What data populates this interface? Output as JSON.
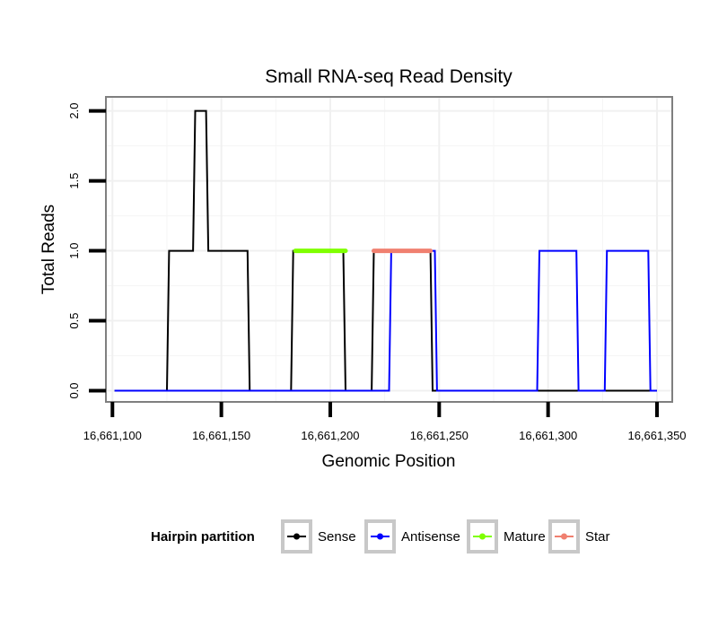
{
  "chart_data": {
    "type": "line",
    "title": "Small RNA-seq Read Density",
    "xlabel": "Genomic Position",
    "ylabel": "Total Reads",
    "xlim": [
      16661097,
      16661357
    ],
    "ylim": [
      -0.08,
      2.1
    ],
    "x_ticks": [
      16661100,
      16661150,
      16661200,
      16661250,
      16661300,
      16661350
    ],
    "x_tick_labels": [
      "16,661,100",
      "16,661,150",
      "16,661,200",
      "16,661,250",
      "16,661,300",
      "16,661,350"
    ],
    "y_ticks": [
      0.0,
      0.5,
      1.0,
      1.5,
      2.0
    ],
    "y_tick_labels": [
      "0.0",
      "0.5",
      "1.0",
      "1.5",
      "2.0"
    ],
    "grid": true,
    "legend": {
      "title": "Hairpin partition",
      "position": "bottom",
      "entries": [
        {
          "label": "Sense",
          "color": "#000000"
        },
        {
          "label": "Antisense",
          "color": "#0000ff"
        },
        {
          "label": "Mature",
          "color": "#7fff00"
        },
        {
          "label": "Star",
          "color": "#f08070"
        }
      ]
    },
    "series": [
      {
        "name": "Sense",
        "color": "#000000",
        "stroke_width": 2,
        "points": [
          [
            16661101,
            0
          ],
          [
            16661125,
            0
          ],
          [
            16661126,
            1
          ],
          [
            16661137,
            1
          ],
          [
            16661138,
            2
          ],
          [
            16661143,
            2
          ],
          [
            16661144,
            1
          ],
          [
            16661162,
            1
          ],
          [
            16661163,
            0
          ],
          [
            16661182,
            0
          ],
          [
            16661183,
            1
          ],
          [
            16661206,
            1
          ],
          [
            16661207,
            0
          ],
          [
            16661219,
            0
          ],
          [
            16661220,
            1
          ],
          [
            16661246,
            1
          ],
          [
            16661247,
            0
          ],
          [
            16661350,
            0
          ]
        ]
      },
      {
        "name": "Antisense",
        "color": "#0000ff",
        "stroke_width": 2,
        "points": [
          [
            16661101,
            0
          ],
          [
            16661227,
            0
          ],
          [
            16661228,
            1
          ],
          [
            16661248,
            1
          ],
          [
            16661249,
            0
          ],
          [
            16661295,
            0
          ],
          [
            16661296,
            1
          ],
          [
            16661313,
            1
          ],
          [
            16661314,
            0
          ],
          [
            16661326,
            0
          ],
          [
            16661327,
            1
          ],
          [
            16661346,
            1
          ],
          [
            16661347,
            0
          ],
          [
            16661350,
            0
          ]
        ]
      },
      {
        "name": "Mature",
        "color": "#7fff00",
        "stroke_width": 5,
        "points": [
          [
            16661184,
            1
          ],
          [
            16661207,
            1
          ]
        ]
      },
      {
        "name": "Star",
        "color": "#f08070",
        "stroke_width": 5,
        "points": [
          [
            16661220,
            1
          ],
          [
            16661246,
            1
          ]
        ]
      }
    ]
  }
}
